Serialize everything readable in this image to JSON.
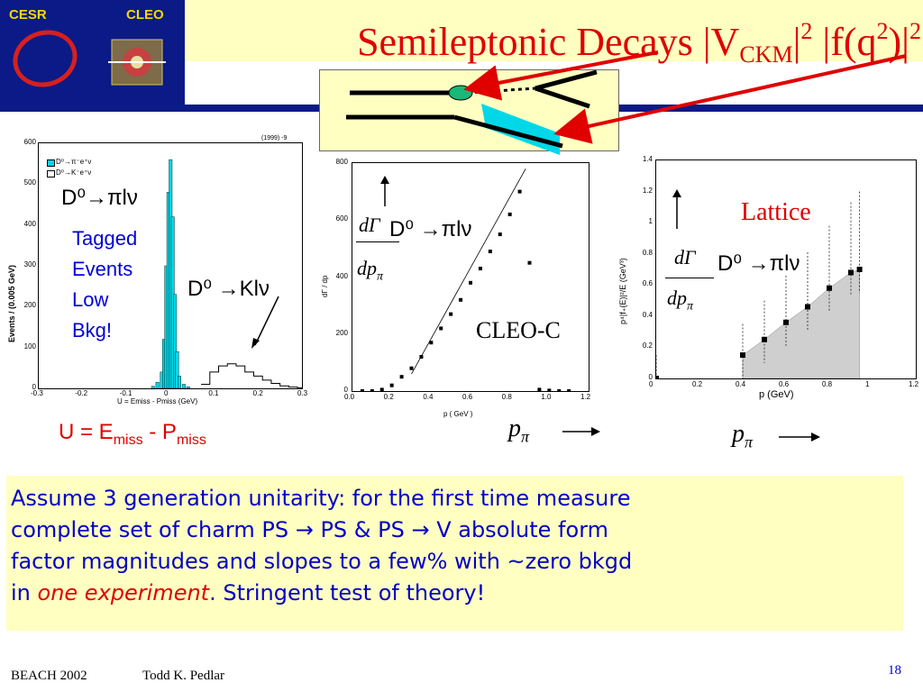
{
  "logo": {
    "cesr": "CESR",
    "cleo": "CLEO"
  },
  "title": {
    "main": "Semileptonic Decays |V",
    "ckm_sub": "CKM",
    "sq1": "2",
    "mid": " |f(q",
    "sq2": "2",
    "tail": ")|",
    "sq3": "2"
  },
  "plot1": {
    "tag": "D⁰→πlν",
    "tagged": [
      "Tagged",
      "Events",
      "Low",
      "Bkg!"
    ],
    "kaon_label": "D⁰ →Klν",
    "legend": [
      "D⁰→π⁻e⁺ν",
      "D⁰→K⁻e⁺ν"
    ],
    "corner_note": "(1999) -9",
    "ylabel": "Events / (0.005 GeV)",
    "xlabel": "U = Emiss - Pmiss (GeV)",
    "y_ticks": [
      "0",
      "100",
      "200",
      "300",
      "400",
      "500",
      "600"
    ],
    "x_ticks": [
      "-0.3",
      "-0.2",
      "-0.1",
      "0",
      "0.1",
      "0.2",
      "0.3"
    ],
    "u_label": "U = E",
    "miss1": "miss",
    "minus_p": " - P",
    "miss2": "miss"
  },
  "plot2": {
    "dgamma": "dΓ",
    "dp": "dp",
    "pi": "π",
    "decay": "D⁰ →πlν",
    "ylabel": "dΓ / dp",
    "xlabel": "p ( GeV )",
    "y_ticks": [
      "0",
      "200",
      "400",
      "600",
      "800"
    ],
    "x_ticks": [
      "0.0",
      "0.2",
      "0.4",
      "0.6",
      "0.8",
      "1.0",
      "1.2"
    ],
    "experiment": "CLEO-C",
    "p_pi": "p",
    "p_pi_sub": "π"
  },
  "plot3": {
    "lattice": "Lattice",
    "dgamma": "dΓ",
    "dp": "dp",
    "pi": "π",
    "decay": "D⁰ →πlν",
    "ylabel": "p⁴|f₊(E)|²/E (GeV³)",
    "xlabel": "p (GeV)",
    "y_ticks": [
      "0",
      "0.2",
      "0.4",
      "0.6",
      "0.8",
      "1",
      "1.2",
      "1.4"
    ],
    "x_ticks": [
      "0",
      "0.2",
      "0.4",
      "0.6",
      "0.8",
      "1",
      "1.2"
    ],
    "p_pi": "p",
    "p_pi_sub": "π"
  },
  "footnote": {
    "line1": "Assume 3 generation unitarity: for the first time measure",
    "line2": "complete set of charm PS → PS & PS → V  absolute form",
    "line3": "factor magnitudes and slopes to a few% with ~zero bkgd",
    "line4a": "in ",
    "line4b": "one experiment",
    "line4c": ". Stringent test of theory!"
  },
  "footer": {
    "conf": "BEACH 2002",
    "author": "Todd K. Pedlar",
    "page": "18"
  },
  "colors": {
    "title_red": "#e00000",
    "navy": "#0b1a86",
    "yellow_bg": "#ffffc2",
    "text_blue": "#0000c8",
    "cyan": "#00d8e8"
  },
  "chart_data": [
    {
      "type": "bar",
      "x_ticks": [
        -0.3,
        -0.2,
        -0.1,
        0,
        0.1,
        0.2,
        0.3
      ],
      "ylim": [
        0,
        600
      ],
      "series": [
        {
          "name": "D⁰→π⁻e⁺ν",
          "x": [
            -0.04,
            -0.03,
            -0.02,
            -0.015,
            -0.01,
            -0.005,
            0,
            0.005,
            0.01,
            0.015,
            0.02,
            0.03,
            0.04
          ],
          "values": [
            5,
            15,
            40,
            120,
            300,
            480,
            560,
            420,
            230,
            90,
            30,
            10,
            4
          ]
        },
        {
          "name": "D⁰→K⁻e⁺ν",
          "x": [
            0.08,
            0.1,
            0.12,
            0.14,
            0.16,
            0.18,
            0.2,
            0.22,
            0.24,
            0.26,
            0.28,
            0.3
          ],
          "values": [
            10,
            40,
            55,
            60,
            55,
            40,
            30,
            20,
            12,
            6,
            3,
            1
          ]
        }
      ]
    },
    {
      "type": "scatter",
      "xlim": [
        0,
        1.2
      ],
      "ylim": [
        0,
        800
      ],
      "x": [
        0.05,
        0.1,
        0.15,
        0.2,
        0.25,
        0.3,
        0.35,
        0.4,
        0.45,
        0.5,
        0.55,
        0.6,
        0.65,
        0.7,
        0.75,
        0.8,
        0.85,
        0.9,
        0.95,
        1.0,
        1.05,
        1.1
      ],
      "y": [
        0,
        0,
        5,
        20,
        50,
        80,
        120,
        170,
        220,
        270,
        320,
        380,
        430,
        490,
        550,
        620,
        700,
        450,
        5,
        2,
        0,
        0
      ]
    },
    {
      "type": "scatter",
      "xlim": [
        0,
        1.2
      ],
      "ylim": [
        0,
        1.4
      ],
      "x": [
        0,
        0.4,
        0.5,
        0.6,
        0.7,
        0.8,
        0.9,
        0.94
      ],
      "y": [
        0,
        0.15,
        0.25,
        0.36,
        0.46,
        0.58,
        0.68,
        0.7
      ]
    }
  ]
}
